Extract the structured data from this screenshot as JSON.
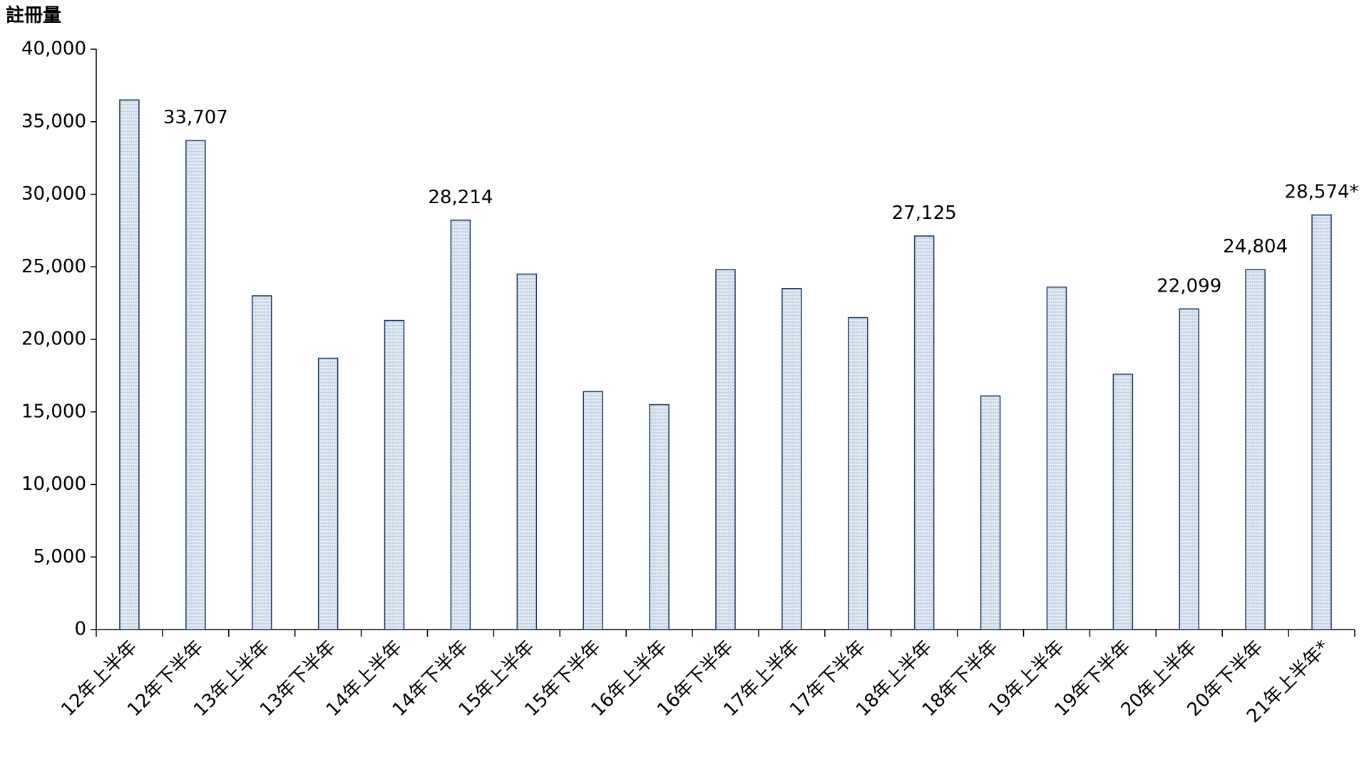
{
  "chart_data": {
    "type": "bar",
    "y_label": "註冊量",
    "categories": [
      "12年上半年",
      "12年下半年",
      "13年上半年",
      "13年下半年",
      "14年上半年",
      "14年下半年",
      "15年上半年",
      "15年下半年",
      "16年上半年",
      "16年下半年",
      "17年上半年",
      "17年下半年",
      "18年上半年",
      "18年下半年",
      "19年上半年",
      "19年下半年",
      "20年上半年",
      "20年下半年",
      "21年上半年*"
    ],
    "values": [
      36500,
      33707,
      23000,
      18700,
      21300,
      28214,
      24500,
      16400,
      15500,
      24800,
      23500,
      21500,
      27125,
      16100,
      23600,
      17600,
      22099,
      24804,
      28574
    ],
    "value_labels": [
      null,
      "33,707",
      null,
      null,
      null,
      "28,214",
      null,
      null,
      null,
      null,
      null,
      null,
      "27,125",
      null,
      null,
      null,
      "22,099",
      "24,804",
      "28,574*"
    ],
    "color": "#1f3864",
    "ylim": [
      0,
      40000
    ],
    "yticks": [
      0,
      {
        "value": 5000,
        "label": "5,000"
      },
      {
        "value": 10000,
        "label": "10,000"
      },
      {
        "value": 15000,
        "label": "15,000"
      },
      {
        "value": 20000,
        "label": "20,000"
      },
      {
        "value": 25000,
        "label": "25,000"
      },
      {
        "value": 30000,
        "label": "30,000"
      },
      {
        "value": 35000,
        "label": "35,000"
      },
      {
        "value": 40000,
        "label": "40,000"
      }
    ],
    "grid": false
  }
}
